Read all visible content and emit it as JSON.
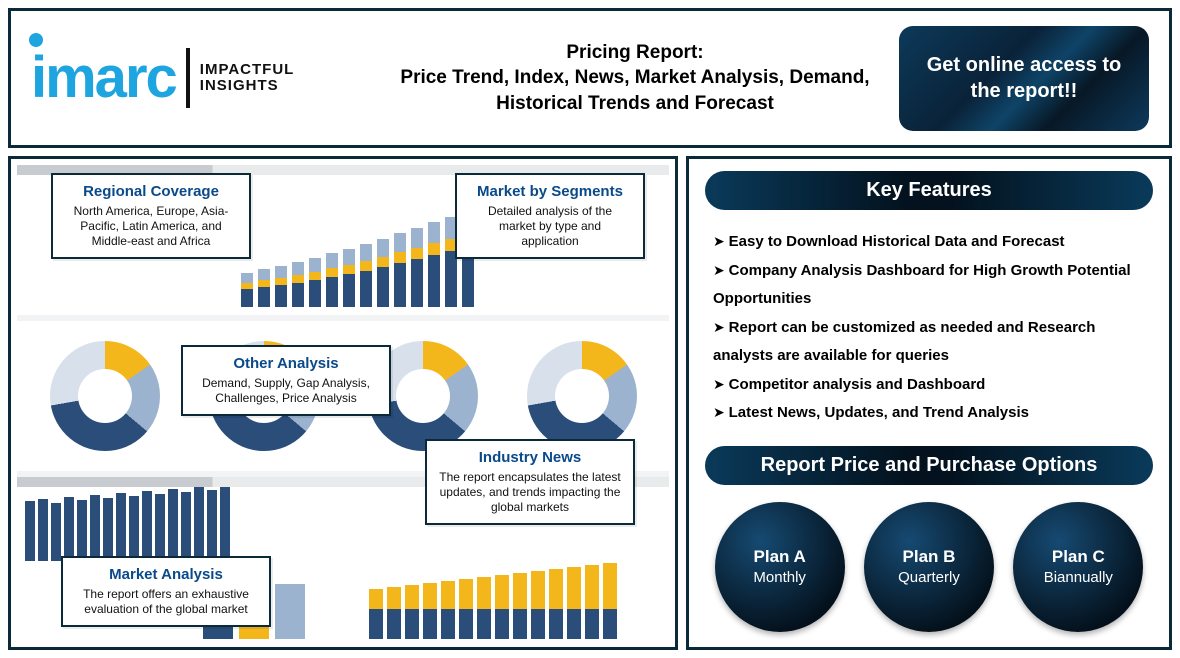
{
  "brand": {
    "name": "imarc",
    "tagline_l1": "IMPACTFUL",
    "tagline_l2": "INSIGHTS",
    "logo_color": "#1ea5e0"
  },
  "title": "Pricing Report:\nPrice Trend, Index, News, Market Analysis, Demand, Historical Trends and Forecast",
  "cta_label": "Get online access to the report!!",
  "callouts": {
    "regional": {
      "title": "Regional Coverage",
      "body": "North America, Europe, Asia-Pacific, Latin America, and Middle-east and Africa"
    },
    "segments": {
      "title": "Market by Segments",
      "body": "Detailed analysis of the market by type and application"
    },
    "other": {
      "title": "Other Analysis",
      "body": "Demand, Supply, Gap Analysis, Challenges, Price Analysis"
    },
    "industry": {
      "title": "Industry News",
      "body": "The report encapsulates the latest updates, and trends impacting the global markets"
    },
    "market": {
      "title": "Market Analysis",
      "body": "The report offers an exhaustive evaluation of the global market"
    }
  },
  "features_title": "Key Features",
  "features": [
    "Easy to Download Historical Data and Forecast",
    "Company Analysis Dashboard for High Growth Potential Opportunities",
    "Report can be customized as needed and Research analysts are available for queries",
    "Competitor analysis and Dashboard",
    "Latest News, Updates, and Trend Analysis"
  ],
  "pricing_title": "Report Price and Purchase Options",
  "plans": [
    {
      "name": "Plan A",
      "period": "Monthly"
    },
    {
      "name": "Plan B",
      "period": "Quarterly"
    },
    {
      "name": "Plan C",
      "period": "Biannually"
    }
  ],
  "colors": {
    "border": "#0a2a3a",
    "accent_blue": "#2a4d7a",
    "accent_yellow": "#f3b71b",
    "accent_light": "#9cb3d0",
    "band_grad_a": "#0a3a5a",
    "band_grad_b": "#03121e"
  },
  "dashboard": {
    "top_bars": {
      "count": 14,
      "segments": [
        "#2a4d7a",
        "#f3b71b",
        "#9cb3d0"
      ],
      "heights": [
        [
          18,
          6,
          10
        ],
        [
          20,
          7,
          11
        ],
        [
          22,
          7,
          12
        ],
        [
          24,
          8,
          13
        ],
        [
          27,
          8,
          14
        ],
        [
          30,
          9,
          15
        ],
        [
          33,
          9,
          16
        ],
        [
          36,
          10,
          17
        ],
        [
          40,
          10,
          18
        ],
        [
          44,
          11,
          19
        ],
        [
          48,
          11,
          20
        ],
        [
          52,
          12,
          21
        ],
        [
          56,
          12,
          22
        ],
        [
          60,
          13,
          23
        ]
      ]
    },
    "donuts": {
      "count": 4,
      "palette": [
        "#f3b71b",
        "#9cb3d0",
        "#2a4d7a",
        "#d8e0ec"
      ],
      "angles_deg": [
        55,
        75,
        130,
        100
      ]
    },
    "mini_bars": {
      "color": "#2a4d7a",
      "heights": [
        60,
        62,
        58,
        64,
        61,
        66,
        63,
        68,
        65,
        70,
        67,
        72,
        69,
        74,
        71,
        76
      ]
    },
    "tiny_cluster": {
      "heights": [
        70,
        40,
        55
      ],
      "colors": [
        "#2a4d7a",
        "#f3b71b",
        "#9cb3d0"
      ]
    },
    "stacked_bars": {
      "count": 14,
      "colors": [
        "#2a4d7a",
        "#f3b71b"
      ],
      "heights": [
        [
          30,
          20
        ],
        [
          30,
          22
        ],
        [
          30,
          24
        ],
        [
          30,
          26
        ],
        [
          30,
          28
        ],
        [
          30,
          30
        ],
        [
          30,
          32
        ],
        [
          30,
          34
        ],
        [
          30,
          36
        ],
        [
          30,
          38
        ],
        [
          30,
          40
        ],
        [
          30,
          42
        ],
        [
          30,
          44
        ],
        [
          30,
          46
        ]
      ]
    }
  }
}
